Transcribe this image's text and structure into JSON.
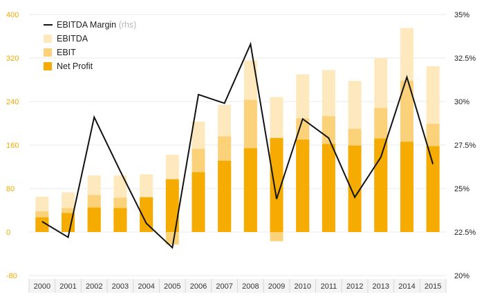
{
  "chart_data": {
    "type": "bar",
    "categories": [
      "2000",
      "2001",
      "2002",
      "2003",
      "2004",
      "2005",
      "2006",
      "2007",
      "2008",
      "2009",
      "2010",
      "2011",
      "2012",
      "2013",
      "2014",
      "2015"
    ],
    "series": [
      {
        "name": "EBITDA",
        "kind": "bar",
        "axis": "left",
        "color": "#fde9bd",
        "values": [
          65,
          73,
          104,
          104,
          106,
          142,
          203,
          234,
          316,
          248,
          290,
          298,
          278,
          320,
          375,
          305
        ]
      },
      {
        "name": "EBIT",
        "kind": "bar",
        "axis": "left",
        "color": "#fbd27a",
        "values": [
          38,
          44,
          68,
          63,
          62,
          -23,
          153,
          176,
          243,
          -17,
          209,
          213,
          190,
          228,
          278,
          199
        ]
      },
      {
        "name": "Net Profit",
        "kind": "bar",
        "axis": "left",
        "color": "#f5ab00",
        "values": [
          27,
          35,
          45,
          44,
          64,
          97,
          110,
          131,
          154,
          173,
          170,
          162,
          159,
          172,
          166,
          158
        ]
      },
      {
        "name": "EBITDA Margin",
        "name_suffix": "(rhs)",
        "kind": "line",
        "axis": "right",
        "color": "#111111",
        "values": [
          23.1,
          22.2,
          29.1,
          26.0,
          23.0,
          21.6,
          30.4,
          29.9,
          33.3,
          24.4,
          29.0,
          27.9,
          24.5,
          26.8,
          31.4,
          26.4
        ]
      }
    ],
    "y_left": {
      "ylim": [
        -80,
        400
      ],
      "ticks": [
        "-80",
        "0",
        "80",
        "160",
        "240",
        "320",
        "400"
      ],
      "tick_color": "#f2a900"
    },
    "y_right": {
      "ylim": [
        20,
        35
      ],
      "ticks": [
        "20%",
        "22.5%",
        "25%",
        "27.5%",
        "30%",
        "32.5%",
        "35%"
      ]
    },
    "grid": true,
    "legend": "top-left",
    "title": "",
    "xlabel": "",
    "ylabel": ""
  }
}
